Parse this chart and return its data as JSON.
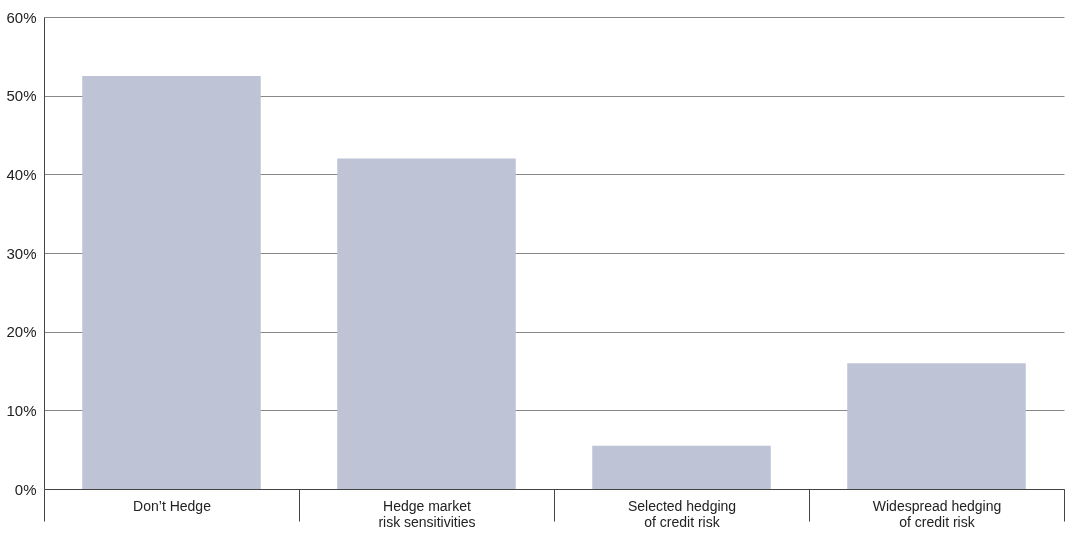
{
  "chart_data": {
    "type": "bar",
    "categories": [
      "Don’t Hedge",
      "Hedge market risk sensitivities",
      "Selected hedging of credit risk",
      "Widespread hedging of credit risk"
    ],
    "values": [
      52.5,
      42,
      5.5,
      16
    ],
    "color": "#bec3d5",
    "ylim": [
      0,
      60
    ],
    "yticks": [
      {
        "value": 0,
        "label": "0%"
      },
      {
        "value": 10,
        "label": "10%"
      },
      {
        "value": 20,
        "label": "20%"
      },
      {
        "value": 30,
        "label": "30%"
      },
      {
        "value": 40,
        "label": "40%"
      },
      {
        "value": 50,
        "label": "50%"
      },
      {
        "value": 60,
        "label": "60%"
      }
    ],
    "grid": "y"
  }
}
